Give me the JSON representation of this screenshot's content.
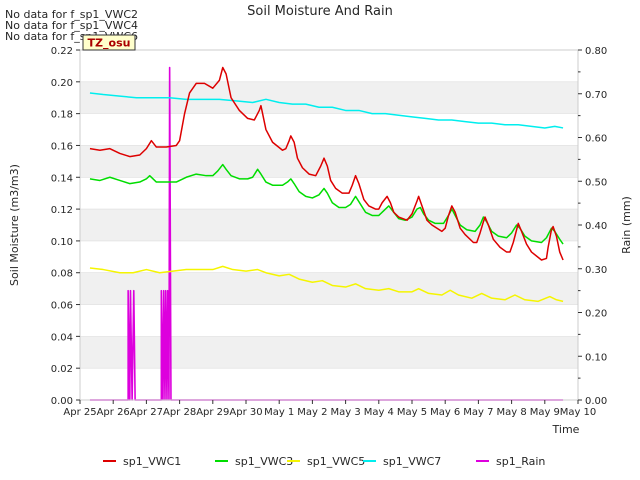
{
  "chart_data": {
    "type": "line",
    "title": "Soil Moisture And Rain",
    "xlabel": "Time",
    "ylabel": "Soil Moisture (m3/m3)",
    "y2label": "Rain (mm)",
    "no_data_notes": [
      "No data for f_sp1_VWC2",
      "No data for f_sp1_VWC4",
      "No data for f_sp1_VWC6"
    ],
    "site_badge": "TZ_osu",
    "xlim": [
      0,
      15
    ],
    "ylim": [
      0,
      0.22
    ],
    "y2lim": [
      0,
      0.8
    ],
    "x_ticks": [
      "Apr 25",
      "Apr 26",
      "Apr 27",
      "Apr 28",
      "Apr 29",
      "Apr 30",
      "May 1",
      "May 2",
      "May 3",
      "May 4",
      "May 5",
      "May 6",
      "May 7",
      "May 8",
      "May 9",
      "May 10"
    ],
    "y_ticks": [
      "0.00",
      "0.02",
      "0.04",
      "0.06",
      "0.08",
      "0.10",
      "0.12",
      "0.14",
      "0.16",
      "0.18",
      "0.20",
      "0.22"
    ],
    "y2_ticks": [
      "0.00",
      "0.10",
      "0.20",
      "0.30",
      "0.40",
      "0.50",
      "0.60",
      "0.70",
      "0.80"
    ],
    "grid": "horizontal bands",
    "legend_position": "bottom",
    "series": [
      {
        "name": "sp1_VWC1",
        "color": "#dd0000",
        "axis": "left",
        "points": [
          [
            0.3,
            0.158
          ],
          [
            0.6,
            0.157
          ],
          [
            0.9,
            0.158
          ],
          [
            1.2,
            0.155
          ],
          [
            1.5,
            0.153
          ],
          [
            1.8,
            0.154
          ],
          [
            2.0,
            0.158
          ],
          [
            2.15,
            0.163
          ],
          [
            2.3,
            0.159
          ],
          [
            2.6,
            0.159
          ],
          [
            2.9,
            0.16
          ],
          [
            3.0,
            0.163
          ],
          [
            3.15,
            0.18
          ],
          [
            3.3,
            0.193
          ],
          [
            3.5,
            0.199
          ],
          [
            3.75,
            0.199
          ],
          [
            4.0,
            0.196
          ],
          [
            4.2,
            0.201
          ],
          [
            4.3,
            0.209
          ],
          [
            4.4,
            0.205
          ],
          [
            4.55,
            0.19
          ],
          [
            4.8,
            0.182
          ],
          [
            5.05,
            0.177
          ],
          [
            5.25,
            0.176
          ],
          [
            5.4,
            0.182
          ],
          [
            5.45,
            0.185
          ],
          [
            5.6,
            0.17
          ],
          [
            5.8,
            0.162
          ],
          [
            6.1,
            0.157
          ],
          [
            6.2,
            0.158
          ],
          [
            6.3,
            0.163
          ],
          [
            6.35,
            0.166
          ],
          [
            6.45,
            0.162
          ],
          [
            6.55,
            0.152
          ],
          [
            6.7,
            0.146
          ],
          [
            6.9,
            0.142
          ],
          [
            7.1,
            0.141
          ],
          [
            7.25,
            0.147
          ],
          [
            7.35,
            0.152
          ],
          [
            7.45,
            0.147
          ],
          [
            7.55,
            0.138
          ],
          [
            7.7,
            0.133
          ],
          [
            7.9,
            0.13
          ],
          [
            8.1,
            0.13
          ],
          [
            8.2,
            0.135
          ],
          [
            8.3,
            0.141
          ],
          [
            8.4,
            0.136
          ],
          [
            8.55,
            0.126
          ],
          [
            8.7,
            0.122
          ],
          [
            8.9,
            0.12
          ],
          [
            9.0,
            0.12
          ],
          [
            9.1,
            0.124
          ],
          [
            9.25,
            0.128
          ],
          [
            9.35,
            0.124
          ],
          [
            9.45,
            0.118
          ],
          [
            9.6,
            0.115
          ],
          [
            9.85,
            0.113
          ],
          [
            10.0,
            0.117
          ],
          [
            10.15,
            0.125
          ],
          [
            10.2,
            0.128
          ],
          [
            10.3,
            0.122
          ],
          [
            10.45,
            0.113
          ],
          [
            10.6,
            0.11
          ],
          [
            10.9,
            0.106
          ],
          [
            11.0,
            0.108
          ],
          [
            11.1,
            0.116
          ],
          [
            11.2,
            0.122
          ],
          [
            11.3,
            0.118
          ],
          [
            11.45,
            0.108
          ],
          [
            11.6,
            0.104
          ],
          [
            11.85,
            0.099
          ],
          [
            11.95,
            0.099
          ],
          [
            12.05,
            0.105
          ],
          [
            12.15,
            0.112
          ],
          [
            12.2,
            0.115
          ],
          [
            12.3,
            0.11
          ],
          [
            12.45,
            0.101
          ],
          [
            12.65,
            0.096
          ],
          [
            12.85,
            0.093
          ],
          [
            12.95,
            0.093
          ],
          [
            13.05,
            0.099
          ],
          [
            13.15,
            0.107
          ],
          [
            13.2,
            0.111
          ],
          [
            13.3,
            0.106
          ],
          [
            13.45,
            0.098
          ],
          [
            13.6,
            0.093
          ],
          [
            13.9,
            0.088
          ],
          [
            14.05,
            0.089
          ],
          [
            14.1,
            0.096
          ],
          [
            14.2,
            0.107
          ],
          [
            14.25,
            0.109
          ],
          [
            14.35,
            0.103
          ],
          [
            14.45,
            0.093
          ],
          [
            14.55,
            0.088
          ]
        ]
      },
      {
        "name": "sp1_VWC3",
        "color": "#00dd00",
        "axis": "left",
        "points": [
          [
            0.3,
            0.139
          ],
          [
            0.6,
            0.138
          ],
          [
            0.9,
            0.14
          ],
          [
            1.2,
            0.138
          ],
          [
            1.5,
            0.136
          ],
          [
            1.8,
            0.137
          ],
          [
            2.0,
            0.139
          ],
          [
            2.1,
            0.141
          ],
          [
            2.3,
            0.137
          ],
          [
            2.6,
            0.137
          ],
          [
            2.9,
            0.137
          ],
          [
            3.2,
            0.14
          ],
          [
            3.5,
            0.142
          ],
          [
            3.8,
            0.141
          ],
          [
            4.0,
            0.141
          ],
          [
            4.15,
            0.144
          ],
          [
            4.3,
            0.148
          ],
          [
            4.4,
            0.145
          ],
          [
            4.55,
            0.141
          ],
          [
            4.8,
            0.139
          ],
          [
            5.05,
            0.139
          ],
          [
            5.2,
            0.14
          ],
          [
            5.35,
            0.145
          ],
          [
            5.45,
            0.142
          ],
          [
            5.6,
            0.137
          ],
          [
            5.8,
            0.135
          ],
          [
            6.1,
            0.135
          ],
          [
            6.25,
            0.137
          ],
          [
            6.35,
            0.139
          ],
          [
            6.45,
            0.136
          ],
          [
            6.6,
            0.131
          ],
          [
            6.8,
            0.128
          ],
          [
            7.0,
            0.127
          ],
          [
            7.2,
            0.129
          ],
          [
            7.35,
            0.133
          ],
          [
            7.45,
            0.13
          ],
          [
            7.6,
            0.124
          ],
          [
            7.8,
            0.121
          ],
          [
            8.0,
            0.121
          ],
          [
            8.15,
            0.123
          ],
          [
            8.3,
            0.128
          ],
          [
            8.45,
            0.123
          ],
          [
            8.6,
            0.118
          ],
          [
            8.8,
            0.116
          ],
          [
            9.0,
            0.116
          ],
          [
            9.15,
            0.119
          ],
          [
            9.3,
            0.122
          ],
          [
            9.45,
            0.118
          ],
          [
            9.6,
            0.114
          ],
          [
            9.8,
            0.113
          ],
          [
            10.0,
            0.115
          ],
          [
            10.15,
            0.12
          ],
          [
            10.25,
            0.121
          ],
          [
            10.35,
            0.117
          ],
          [
            10.5,
            0.113
          ],
          [
            10.7,
            0.111
          ],
          [
            10.95,
            0.111
          ],
          [
            11.1,
            0.116
          ],
          [
            11.2,
            0.12
          ],
          [
            11.3,
            0.116
          ],
          [
            11.45,
            0.11
          ],
          [
            11.65,
            0.107
          ],
          [
            11.9,
            0.106
          ],
          [
            12.05,
            0.11
          ],
          [
            12.15,
            0.115
          ],
          [
            12.25,
            0.112
          ],
          [
            12.4,
            0.106
          ],
          [
            12.6,
            0.103
          ],
          [
            12.85,
            0.102
          ],
          [
            13.0,
            0.105
          ],
          [
            13.15,
            0.11
          ],
          [
            13.25,
            0.108
          ],
          [
            13.4,
            0.103
          ],
          [
            13.6,
            0.1
          ],
          [
            13.9,
            0.099
          ],
          [
            14.05,
            0.102
          ],
          [
            14.2,
            0.108
          ],
          [
            14.3,
            0.106
          ],
          [
            14.45,
            0.101
          ],
          [
            14.55,
            0.098
          ]
        ]
      },
      {
        "name": "sp1_VWC5",
        "color": "#f5f500",
        "axis": "left",
        "points": [
          [
            0.3,
            0.083
          ],
          [
            0.7,
            0.082
          ],
          [
            1.2,
            0.08
          ],
          [
            1.6,
            0.08
          ],
          [
            2.0,
            0.082
          ],
          [
            2.4,
            0.08
          ],
          [
            2.8,
            0.081
          ],
          [
            3.2,
            0.082
          ],
          [
            3.6,
            0.082
          ],
          [
            4.0,
            0.082
          ],
          [
            4.3,
            0.084
          ],
          [
            4.6,
            0.082
          ],
          [
            5.0,
            0.081
          ],
          [
            5.35,
            0.082
          ],
          [
            5.6,
            0.08
          ],
          [
            6.0,
            0.078
          ],
          [
            6.3,
            0.079
          ],
          [
            6.6,
            0.076
          ],
          [
            7.0,
            0.074
          ],
          [
            7.3,
            0.075
          ],
          [
            7.6,
            0.072
          ],
          [
            8.0,
            0.071
          ],
          [
            8.3,
            0.073
          ],
          [
            8.6,
            0.07
          ],
          [
            9.0,
            0.069
          ],
          [
            9.3,
            0.07
          ],
          [
            9.6,
            0.068
          ],
          [
            10.0,
            0.068
          ],
          [
            10.2,
            0.07
          ],
          [
            10.5,
            0.067
          ],
          [
            10.9,
            0.066
          ],
          [
            11.15,
            0.069
          ],
          [
            11.4,
            0.066
          ],
          [
            11.8,
            0.064
          ],
          [
            12.1,
            0.067
          ],
          [
            12.4,
            0.064
          ],
          [
            12.8,
            0.063
          ],
          [
            13.1,
            0.066
          ],
          [
            13.4,
            0.063
          ],
          [
            13.8,
            0.062
          ],
          [
            14.15,
            0.065
          ],
          [
            14.35,
            0.063
          ],
          [
            14.55,
            0.062
          ]
        ]
      },
      {
        "name": "sp1_VWC7",
        "color": "#00eeee",
        "axis": "left",
        "points": [
          [
            0.3,
            0.193
          ],
          [
            0.7,
            0.192
          ],
          [
            1.2,
            0.191
          ],
          [
            1.7,
            0.19
          ],
          [
            2.2,
            0.19
          ],
          [
            2.7,
            0.19
          ],
          [
            3.2,
            0.189
          ],
          [
            3.7,
            0.189
          ],
          [
            4.2,
            0.189
          ],
          [
            4.7,
            0.188
          ],
          [
            5.2,
            0.187
          ],
          [
            5.6,
            0.189
          ],
          [
            6.0,
            0.187
          ],
          [
            6.4,
            0.186
          ],
          [
            6.8,
            0.186
          ],
          [
            7.2,
            0.184
          ],
          [
            7.6,
            0.184
          ],
          [
            8.0,
            0.182
          ],
          [
            8.4,
            0.182
          ],
          [
            8.8,
            0.18
          ],
          [
            9.2,
            0.18
          ],
          [
            9.6,
            0.179
          ],
          [
            10.0,
            0.178
          ],
          [
            10.4,
            0.177
          ],
          [
            10.8,
            0.176
          ],
          [
            11.2,
            0.176
          ],
          [
            11.6,
            0.175
          ],
          [
            12.0,
            0.174
          ],
          [
            12.4,
            0.174
          ],
          [
            12.8,
            0.173
          ],
          [
            13.2,
            0.173
          ],
          [
            13.6,
            0.172
          ],
          [
            14.0,
            0.171
          ],
          [
            14.3,
            0.172
          ],
          [
            14.55,
            0.171
          ]
        ]
      },
      {
        "name": "sp1_Rain",
        "color": "#dd00dd",
        "axis": "right",
        "points": [
          [
            0.3,
            0
          ],
          [
            1.45,
            0
          ],
          [
            1.45,
            0.25
          ],
          [
            1.5,
            0
          ],
          [
            1.52,
            0.25
          ],
          [
            1.57,
            0
          ],
          [
            1.62,
            0.25
          ],
          [
            1.66,
            0
          ],
          [
            2.45,
            0
          ],
          [
            2.45,
            0.25
          ],
          [
            2.5,
            0
          ],
          [
            2.52,
            0.25
          ],
          [
            2.56,
            0
          ],
          [
            2.58,
            0.25
          ],
          [
            2.62,
            0
          ],
          [
            2.64,
            0.25
          ],
          [
            2.68,
            0
          ],
          [
            2.7,
            0.76
          ],
          [
            2.74,
            0
          ],
          [
            14.55,
            0
          ]
        ]
      }
    ]
  }
}
